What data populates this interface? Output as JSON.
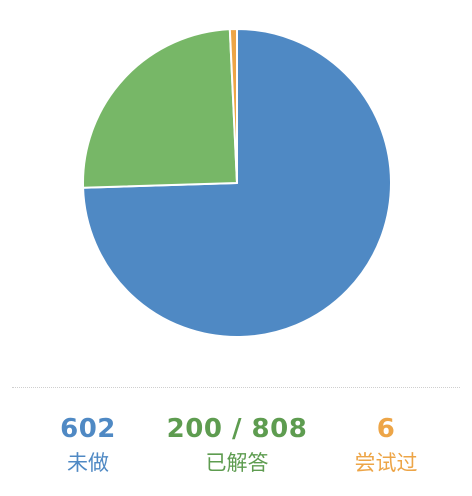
{
  "chart_data": {
    "type": "pie",
    "categories": [
      "未做",
      "已解答",
      "尝试过"
    ],
    "values": [
      602,
      200,
      6
    ],
    "total": 808,
    "start_angle_deg": 0,
    "direction": "clockwise",
    "colors": [
      "#4f89c4",
      "#77b767",
      "#eda547"
    ]
  },
  "stats": {
    "todo": {
      "value": "602",
      "label": "未做",
      "color": "#4f89c4"
    },
    "solved": {
      "value": "200 / 808",
      "label": "已解答",
      "color": "#5e9c50"
    },
    "attempted": {
      "value": "6",
      "label": "尝试过",
      "color": "#eda547"
    }
  }
}
